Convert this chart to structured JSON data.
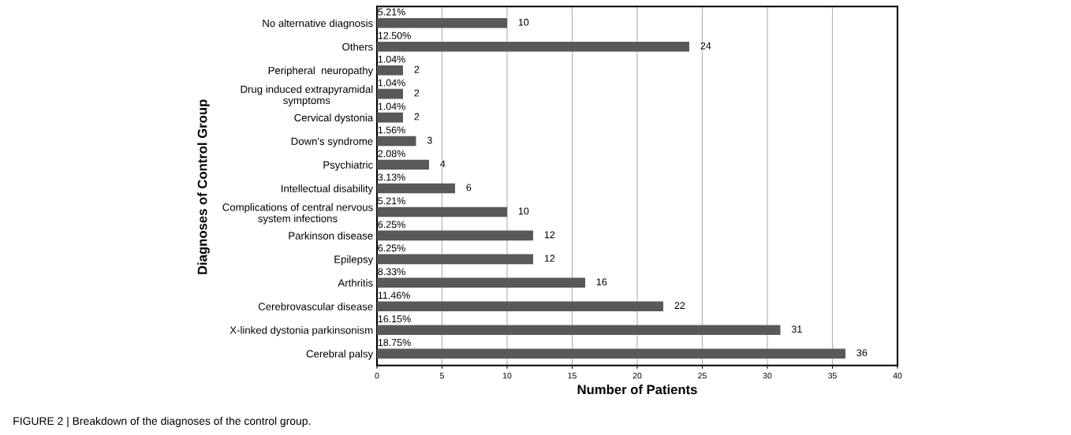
{
  "chart_data": {
    "type": "bar",
    "orientation": "horizontal",
    "xlabel": "Number of Patients",
    "ylabel": "Diagnoses of Control Group",
    "categories": [
      "No alternative diagnosis",
      "Others",
      "Peripheral  neuropathy",
      "Drug induced extrapyramidal\nsymptoms",
      "Cervical dystonia",
      "Down's syndrome",
      "Psychiatric",
      "Intellectual disability",
      "Complications of central nervous\nsystem infections",
      "Parkinson disease",
      "Epilepsy",
      "Arthritis",
      "Cerebrovascular disease",
      "X-linked dystonia parkinsonism",
      "Cerebral palsy"
    ],
    "values": [
      10,
      24,
      2,
      2,
      2,
      3,
      4,
      6,
      10,
      12,
      12,
      16,
      22,
      31,
      36
    ],
    "data_labels": true,
    "color": "#595959",
    "xlim": [
      0,
      40
    ],
    "xticks": [
      0,
      5,
      10,
      15,
      20,
      25,
      30,
      35,
      40
    ],
    "grid": "x",
    "annotations": [
      "5.21%",
      "12.50%",
      "1.04%",
      "1.04%",
      "1.04%",
      "1.56%",
      "2.08%",
      "3.13%",
      "5.21%",
      "6.25%",
      "6.25%",
      "8.33%",
      "11.46%",
      "16.15%",
      "18.75%",
      "FIGURE 2 | Breakdown of the diagnoses of the control group."
    ]
  }
}
